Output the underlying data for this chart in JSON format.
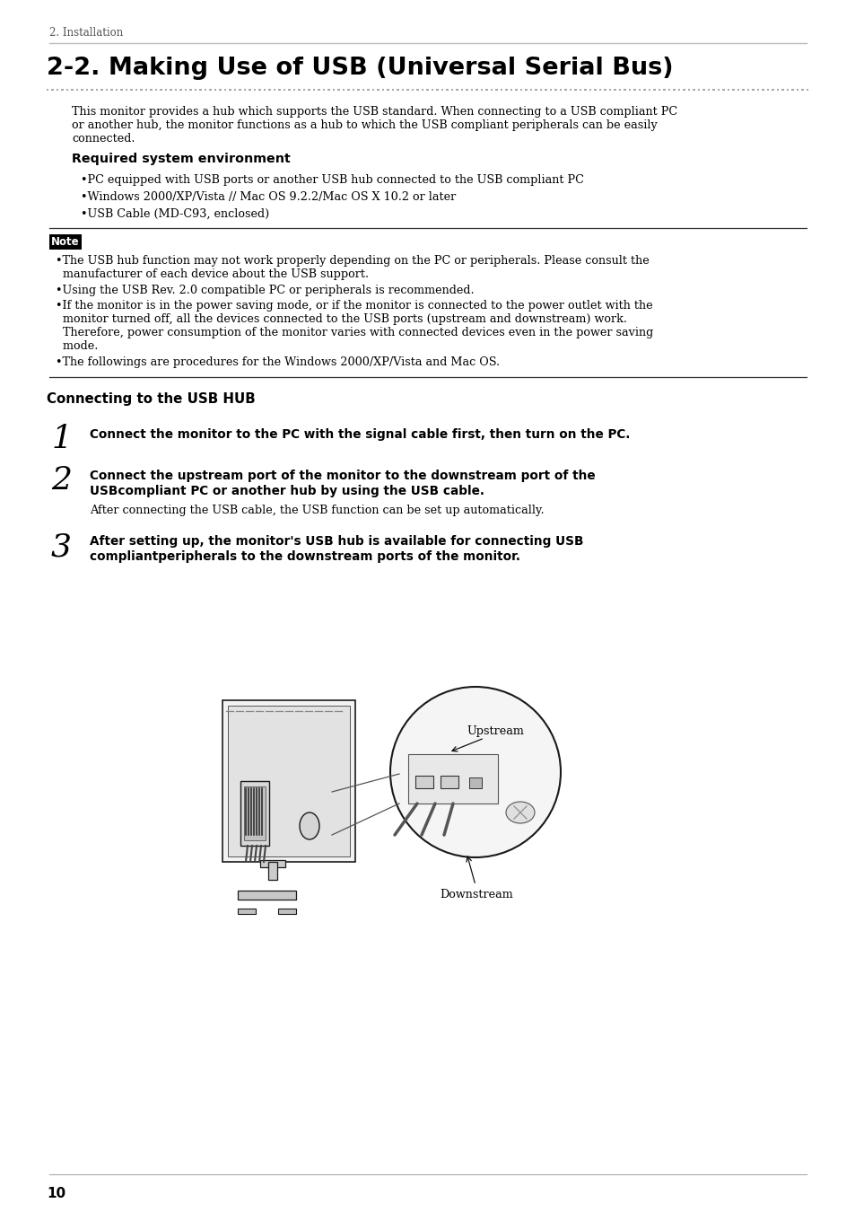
{
  "page_header": "2. Installation",
  "title": "2-2. Making Use of USB (Universal Serial Bus)",
  "intro_line1": "This monitor provides a hub which supports the USB standard. When connecting to a USB compliant PC",
  "intro_line2": "or another hub, the monitor functions as a hub to which the USB compliant peripherals can be easily",
  "intro_line3": "connected.",
  "section1_heading": "Required system environment",
  "bullet1": "PC equipped with USB ports or another USB hub connected to the USB compliant PC",
  "bullet2": "Windows 2000/XP/Vista // Mac OS 9.2.2/Mac OS X 10.2 or later",
  "bullet3": "USB Cable (MD-C93, enclosed)",
  "note_label": "Note",
  "note1a": "The USB hub function may not work properly depending on the PC or peripherals. Please consult the",
  "note1b": "  manufacturer of each device about the USB support.",
  "note2": "Using the USB Rev. 2.0 compatible PC or peripherals is recommended.",
  "note3a": "If the monitor is in the power saving mode, or if the monitor is connected to the power outlet with the",
  "note3b": "  monitor turned off, all the devices connected to the USB ports (upstream and downstream) work.",
  "note3c": "  Therefore, power consumption of the monitor varies with connected devices even in the power saving",
  "note3d": "  mode.",
  "note4": "The followings are procedures for the Windows 2000/XP/Vista and Mac OS.",
  "section2_heading": "Connecting to the USB HUB",
  "step1_num": "1",
  "step1_text": "Connect the monitor to the PC with the signal cable first, then turn on the PC.",
  "step2_num": "2",
  "step2_line1": "Connect the upstream port of the monitor to the downstream port of the",
  "step2_line2": "USBcompliant PC or another hub by using the USB cable.",
  "step2_sub": "After connecting the USB cable, the USB function can be set up automatically.",
  "step3_num": "3",
  "step3_line1": "After setting up, the monitor's USB hub is available for connecting USB",
  "step3_line2": "compliantperipherals to the downstream ports of the monitor.",
  "img_upstream": "Upstream",
  "img_downstream": "Downstream",
  "page_number": "10",
  "bg_color": "#ffffff",
  "text_color": "#000000"
}
